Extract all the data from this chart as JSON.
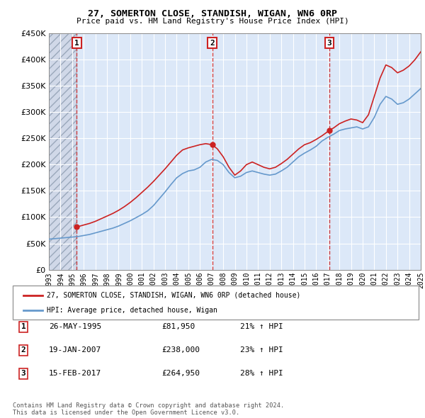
{
  "title": "27, SOMERTON CLOSE, STANDISH, WIGAN, WN6 0RP",
  "subtitle": "Price paid vs. HM Land Registry's House Price Index (HPI)",
  "legend_label_red": "27, SOMERTON CLOSE, STANDISH, WIGAN, WN6 0RP (detached house)",
  "legend_label_blue": "HPI: Average price, detached house, Wigan",
  "footer": "Contains HM Land Registry data © Crown copyright and database right 2024.\nThis data is licensed under the Open Government Licence v3.0.",
  "sale_points": [
    {
      "num": 1,
      "date": "26-MAY-1995",
      "price": 81950,
      "pct": "21% ↑ HPI",
      "year": 1995.4
    },
    {
      "num": 2,
      "date": "19-JAN-2007",
      "price": 238000,
      "pct": "23% ↑ HPI",
      "year": 2007.05
    },
    {
      "num": 3,
      "date": "15-FEB-2017",
      "price": 264950,
      "pct": "28% ↑ HPI",
      "year": 2017.12
    }
  ],
  "hpi_data": {
    "years": [
      1993,
      1993.5,
      1994,
      1994.5,
      1995,
      1995.5,
      1996,
      1996.5,
      1997,
      1997.5,
      1998,
      1998.5,
      1999,
      1999.5,
      2000,
      2000.5,
      2001,
      2001.5,
      2002,
      2002.5,
      2003,
      2003.5,
      2004,
      2004.5,
      2005,
      2005.5,
      2006,
      2006.5,
      2007,
      2007.5,
      2008,
      2008.5,
      2009,
      2009.5,
      2010,
      2010.5,
      2011,
      2011.5,
      2012,
      2012.5,
      2013,
      2013.5,
      2014,
      2014.5,
      2015,
      2015.5,
      2016,
      2016.5,
      2017,
      2017.5,
      2018,
      2018.5,
      2019,
      2019.5,
      2020,
      2020.5,
      2021,
      2021.5,
      2022,
      2022.5,
      2023,
      2023.5,
      2024,
      2024.5,
      2025
    ],
    "values": [
      58000,
      59000,
      60000,
      61000,
      62000,
      63000,
      65000,
      67000,
      70000,
      73000,
      76000,
      79000,
      83000,
      88000,
      93000,
      99000,
      105000,
      112000,
      122000,
      135000,
      148000,
      162000,
      175000,
      183000,
      188000,
      190000,
      195000,
      205000,
      210000,
      208000,
      200000,
      185000,
      175000,
      178000,
      185000,
      188000,
      185000,
      182000,
      180000,
      182000,
      188000,
      195000,
      205000,
      215000,
      222000,
      228000,
      235000,
      245000,
      252000,
      258000,
      265000,
      268000,
      270000,
      272000,
      268000,
      272000,
      290000,
      315000,
      330000,
      325000,
      315000,
      318000,
      325000,
      335000,
      345000
    ]
  },
  "price_data": {
    "years": [
      1995.4,
      1995.6,
      1996,
      1996.5,
      1997,
      1997.5,
      1998,
      1998.5,
      1999,
      1999.5,
      2000,
      2000.5,
      2001,
      2001.5,
      2002,
      2002.5,
      2003,
      2003.5,
      2004,
      2004.5,
      2005,
      2005.5,
      2006,
      2006.5,
      2007.05,
      2007.5,
      2008,
      2008.5,
      2009,
      2009.5,
      2010,
      2010.5,
      2011,
      2011.5,
      2012,
      2012.5,
      2013,
      2013.5,
      2014,
      2014.5,
      2015,
      2015.5,
      2016,
      2016.5,
      2017.12,
      2017.5,
      2018,
      2018.5,
      2019,
      2019.5,
      2020,
      2020.5,
      2021,
      2021.5,
      2022,
      2022.5,
      2023,
      2023.5,
      2024,
      2024.5,
      2025
    ],
    "values": [
      81950,
      82500,
      85000,
      88000,
      92000,
      97000,
      102000,
      107000,
      113000,
      120000,
      128000,
      137000,
      147000,
      157000,
      168000,
      180000,
      192000,
      205000,
      218000,
      228000,
      232000,
      235000,
      238000,
      240000,
      238000,
      230000,
      215000,
      195000,
      180000,
      188000,
      200000,
      205000,
      200000,
      195000,
      192000,
      195000,
      202000,
      210000,
      220000,
      230000,
      238000,
      242000,
      248000,
      255000,
      264950,
      270000,
      278000,
      283000,
      287000,
      285000,
      280000,
      295000,
      330000,
      365000,
      390000,
      385000,
      375000,
      380000,
      388000,
      400000,
      415000
    ]
  },
  "xlim": [
    1993,
    2025
  ],
  "ylim": [
    0,
    450000
  ],
  "yticks": [
    0,
    50000,
    100000,
    150000,
    200000,
    250000,
    300000,
    350000,
    400000,
    450000
  ],
  "xticks": [
    1993,
    1994,
    1995,
    1996,
    1997,
    1998,
    1999,
    2000,
    2001,
    2002,
    2003,
    2004,
    2005,
    2006,
    2007,
    2008,
    2009,
    2010,
    2011,
    2012,
    2013,
    2014,
    2015,
    2016,
    2017,
    2018,
    2019,
    2020,
    2021,
    2022,
    2023,
    2024,
    2025
  ],
  "background_hatch": "#d0d8e8",
  "background_plot": "#dce8f8",
  "grid_color": "#ffffff",
  "hpi_color": "#6699cc",
  "price_color": "#cc2222",
  "sale_dot_color": "#cc2222",
  "dashed_line_color": "#cc2222",
  "box_color": "#cc2222",
  "hatch_region_end": 1995.4
}
